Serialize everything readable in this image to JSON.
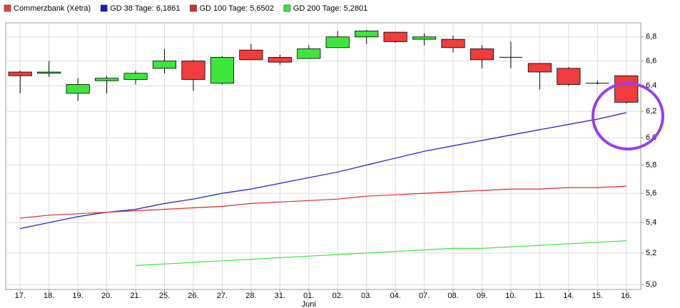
{
  "chart_data": {
    "type": "candlestick",
    "log_scale": true,
    "grid": true,
    "categories": [
      "17.",
      "18.",
      "19.",
      "20.",
      "21.",
      "25.",
      "26.",
      "27.",
      "28.",
      "31.",
      "01.",
      "02.",
      "03.",
      "04.",
      "07.",
      "08.",
      "09.",
      "10.",
      "11.",
      "14.",
      "15.",
      "16."
    ],
    "x_group_labels": [
      {
        "label": "Juni",
        "at": "01."
      }
    ],
    "candles": {
      "name": "Commerzbank (Xetra)",
      "color": "#f03c3c",
      "up_color": "#3ce63c",
      "down_color": "#f03c3c",
      "open": [
        6.51,
        6.5,
        6.34,
        6.44,
        6.45,
        6.54,
        6.6,
        6.42,
        6.69,
        6.63,
        6.62,
        6.71,
        6.8,
        6.84,
        6.78,
        6.78,
        6.7,
        6.63,
        6.58,
        6.54,
        6.42,
        6.48
      ],
      "high": [
        6.52,
        6.6,
        6.46,
        6.48,
        6.52,
        6.7,
        6.61,
        6.64,
        6.74,
        6.65,
        6.73,
        6.85,
        6.86,
        6.84,
        6.83,
        6.81,
        6.73,
        6.76,
        6.58,
        6.55,
        6.44,
        6.48
      ],
      "low": [
        6.34,
        6.47,
        6.28,
        6.34,
        6.41,
        6.5,
        6.36,
        6.41,
        6.61,
        6.57,
        6.62,
        6.71,
        6.74,
        6.75,
        6.73,
        6.67,
        6.54,
        6.54,
        6.37,
        6.4,
        6.41,
        6.26
      ],
      "close": [
        6.48,
        6.51,
        6.41,
        6.46,
        6.5,
        6.6,
        6.45,
        6.63,
        6.61,
        6.59,
        6.7,
        6.8,
        6.85,
        6.76,
        6.8,
        6.71,
        6.61,
        6.63,
        6.51,
        6.41,
        6.42,
        6.27
      ]
    },
    "series": [
      {
        "name": "GD 38 Tage: 6,1861",
        "color": "#1a1ac8",
        "values": [
          5.36,
          5.4,
          5.44,
          5.47,
          5.49,
          5.53,
          5.56,
          5.6,
          5.63,
          5.67,
          5.71,
          5.75,
          5.8,
          5.85,
          5.9,
          5.94,
          5.98,
          6.02,
          6.06,
          6.1,
          6.14,
          6.19
        ]
      },
      {
        "name": "GD 100 Tage: 5,6502",
        "color": "#e02828",
        "values": [
          5.43,
          5.45,
          5.46,
          5.47,
          5.48,
          5.49,
          5.5,
          5.51,
          5.53,
          5.54,
          5.55,
          5.56,
          5.58,
          5.59,
          5.6,
          5.61,
          5.62,
          5.63,
          5.63,
          5.64,
          5.64,
          5.65
        ]
      },
      {
        "name": "GD 200 Tage: 5,2801",
        "color": "#3ce63c",
        "values": [
          null,
          null,
          null,
          null,
          5.12,
          5.13,
          5.14,
          5.15,
          5.16,
          5.17,
          5.18,
          5.19,
          5.2,
          5.21,
          5.22,
          5.23,
          5.23,
          5.24,
          5.25,
          5.26,
          5.27,
          5.28
        ]
      }
    ],
    "ylim": [
      4.97,
      6.92
    ],
    "yticks": [
      {
        "value": 5.0,
        "label": "5,0"
      },
      {
        "value": 5.2,
        "label": "5,2"
      },
      {
        "value": 5.4,
        "label": "5,4"
      },
      {
        "value": 5.6,
        "label": "5,6"
      },
      {
        "value": 5.8,
        "label": "5,8"
      },
      {
        "value": 6.0,
        "label": "6,0"
      },
      {
        "value": 6.2,
        "label": "6,2"
      },
      {
        "value": 6.4,
        "label": "6,4"
      },
      {
        "value": 6.6,
        "label": "6,6"
      },
      {
        "value": 6.8,
        "label": "6,8"
      }
    ]
  }
}
